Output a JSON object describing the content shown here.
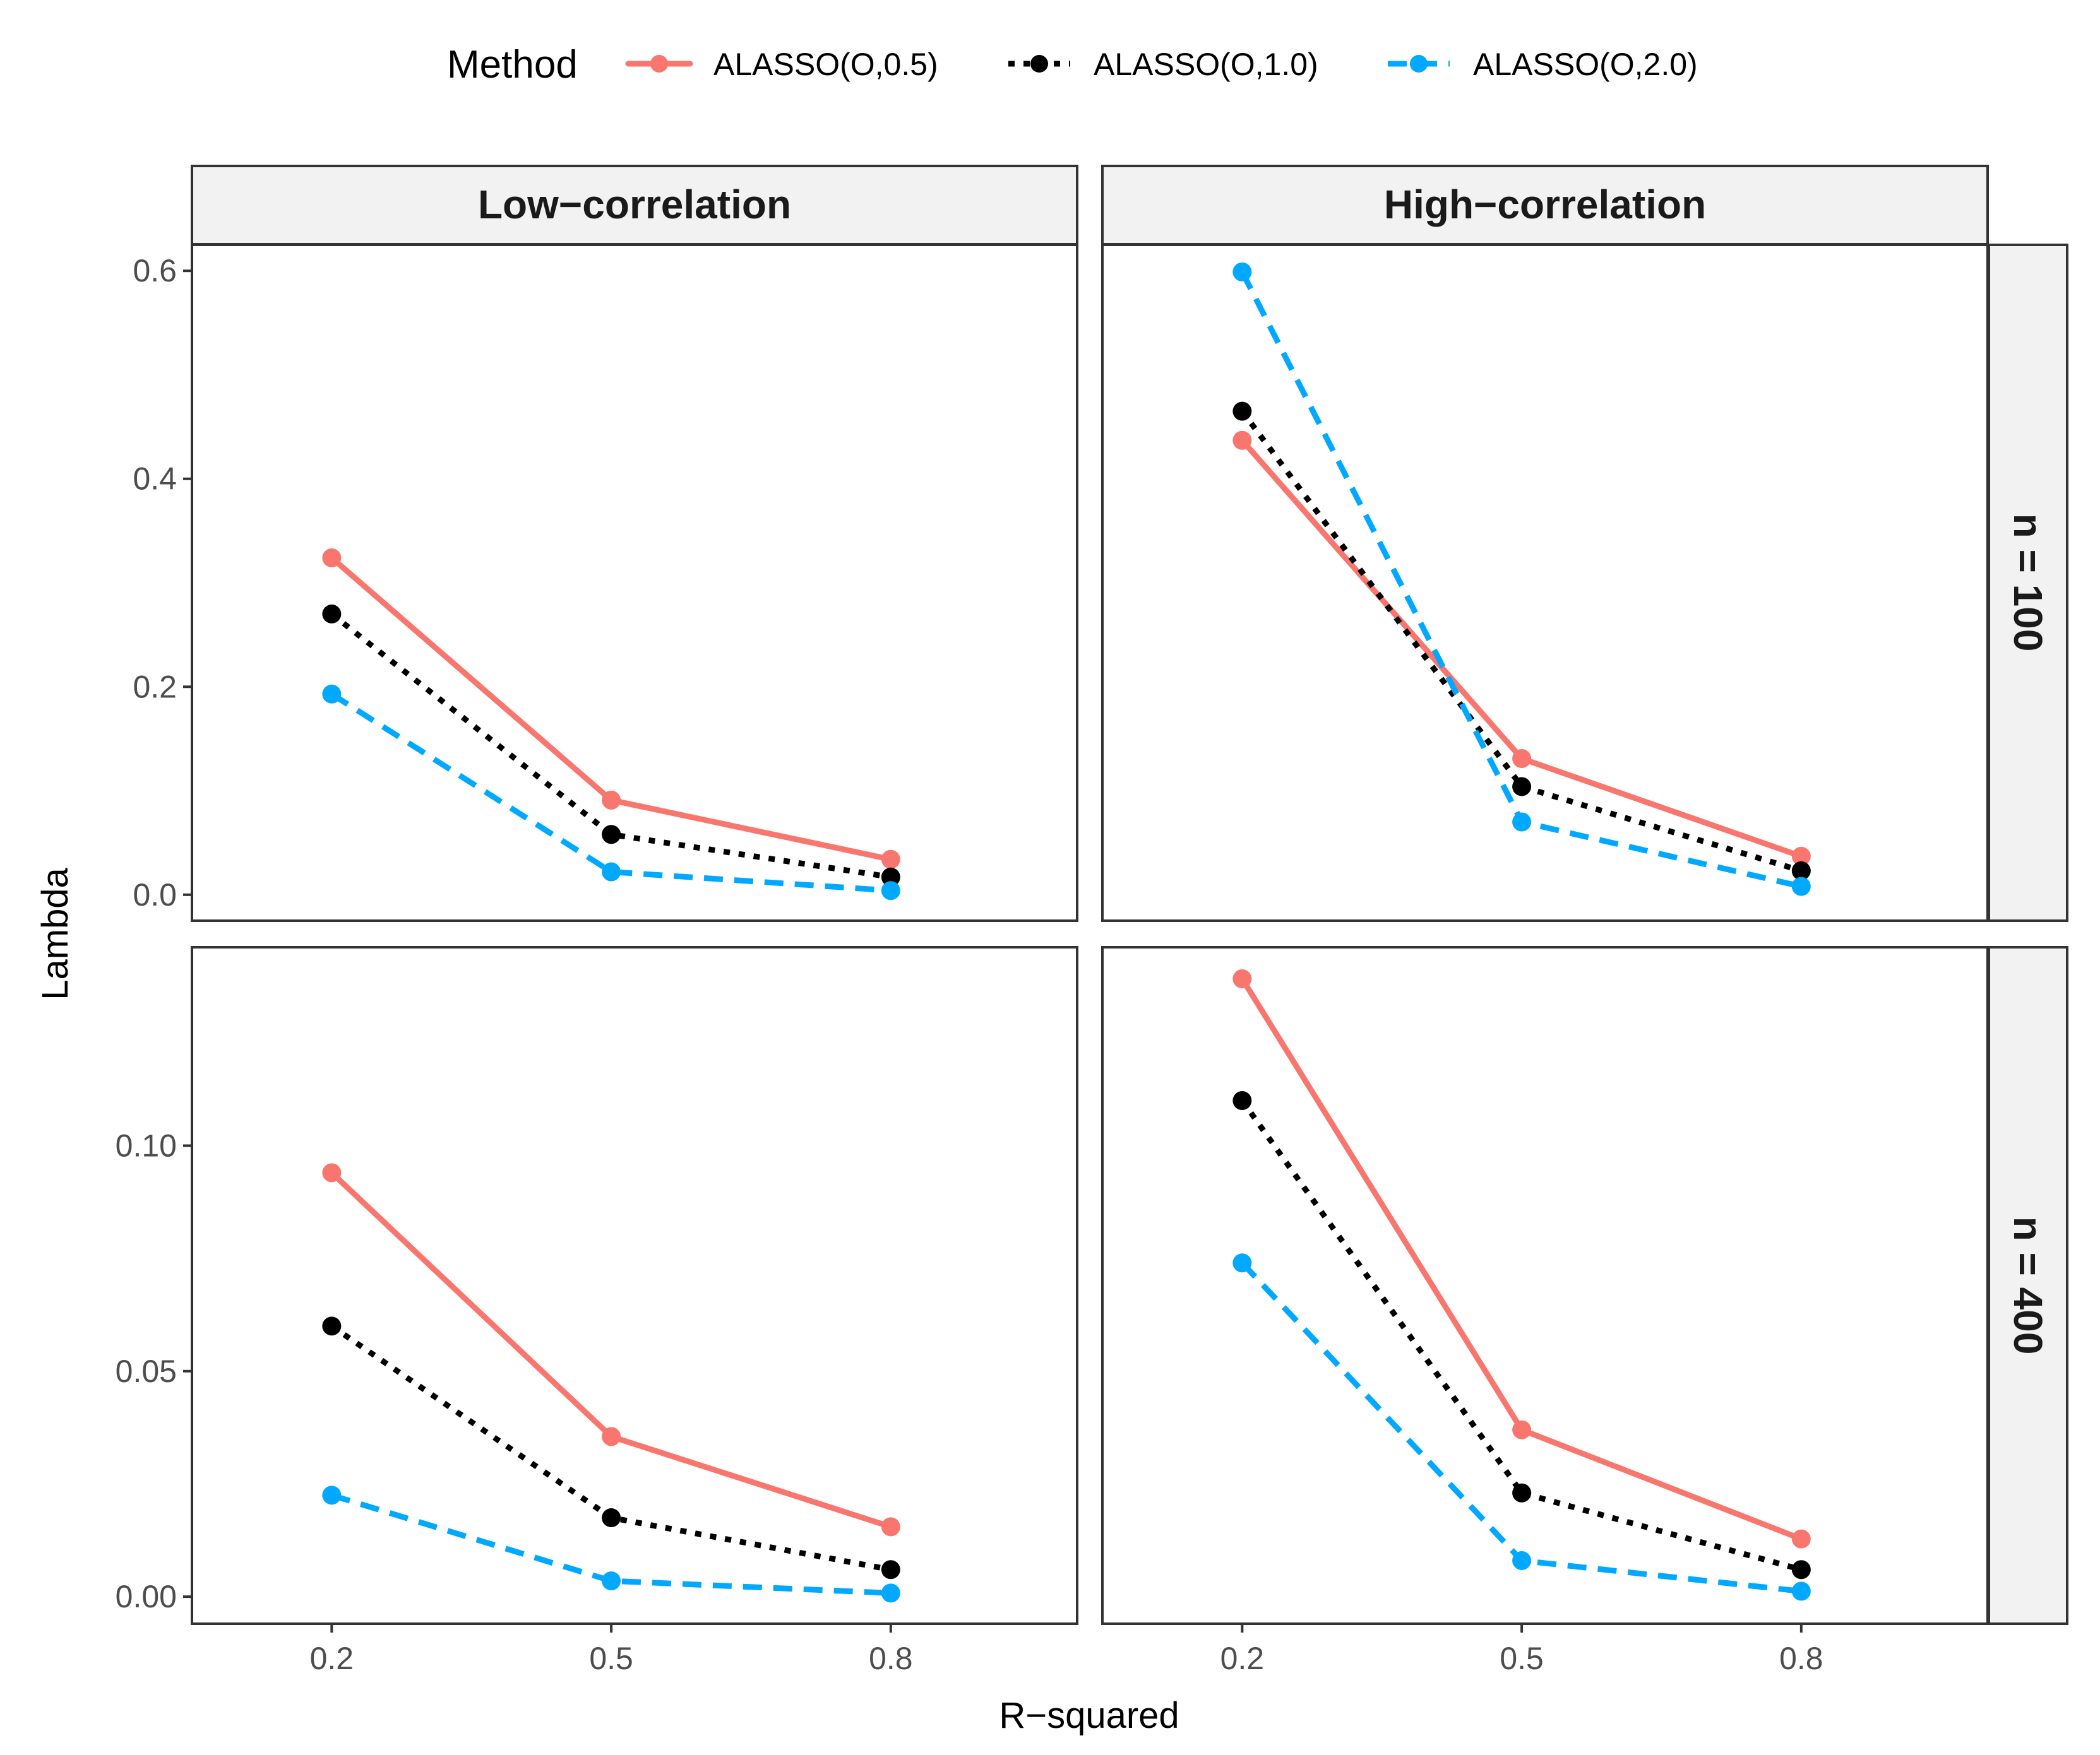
{
  "chart_data": {
    "type": "line",
    "xlabel": "R−squared",
    "ylabel": "Lambda",
    "legend": {
      "title": "Method",
      "position": "top",
      "entries": [
        {
          "name": "ALASSO(O,0.5)",
          "color": "#F8766D",
          "dash": "solid"
        },
        {
          "name": "ALASSO(O,1.0)",
          "color": "#000000",
          "dash": "dotted"
        },
        {
          "name": "ALASSO(O,2.0)",
          "color": "#00A9FF",
          "dash": "dashed"
        }
      ]
    },
    "column_strips": [
      "Low−correlation",
      "High−correlation"
    ],
    "row_strips": [
      "n = 100",
      "n = 400"
    ],
    "x": [
      "0.2",
      "0.5",
      "0.8"
    ],
    "x_values": [
      0.2,
      0.5,
      0.8
    ],
    "xlim": [
      0.05,
      1.0
    ],
    "rows": [
      {
        "ylim": [
          -0.025,
          0.625
        ],
        "yticks": [
          0.0,
          0.2,
          0.4,
          0.6
        ],
        "ytick_labels": [
          "0.0",
          "0.2",
          "0.4",
          "0.6"
        ]
      },
      {
        "ylim": [
          -0.006,
          0.144
        ],
        "yticks": [
          0.0,
          0.05,
          0.1
        ],
        "ytick_labels": [
          "0.00",
          "0.05",
          "0.10"
        ]
      }
    ],
    "panels": [
      {
        "row": 0,
        "col": 0,
        "series": [
          {
            "name": "ALASSO(O,0.5)",
            "values": [
              0.324,
              0.091,
              0.034
            ]
          },
          {
            "name": "ALASSO(O,1.0)",
            "values": [
              0.27,
              0.058,
              0.017
            ]
          },
          {
            "name": "ALASSO(O,2.0)",
            "values": [
              0.193,
              0.022,
              0.004
            ]
          }
        ]
      },
      {
        "row": 0,
        "col": 1,
        "series": [
          {
            "name": "ALASSO(O,0.5)",
            "values": [
              0.437,
              0.131,
              0.037
            ]
          },
          {
            "name": "ALASSO(O,1.0)",
            "values": [
              0.465,
              0.104,
              0.023
            ]
          },
          {
            "name": "ALASSO(O,2.0)",
            "values": [
              0.599,
              0.07,
              0.008
            ]
          }
        ]
      },
      {
        "row": 1,
        "col": 0,
        "series": [
          {
            "name": "ALASSO(O,0.5)",
            "values": [
              0.094,
              0.0355,
              0.0155
            ]
          },
          {
            "name": "ALASSO(O,1.0)",
            "values": [
              0.06,
              0.0175,
              0.006
            ]
          },
          {
            "name": "ALASSO(O,2.0)",
            "values": [
              0.0225,
              0.0035,
              0.0008
            ]
          }
        ]
      },
      {
        "row": 1,
        "col": 1,
        "series": [
          {
            "name": "ALASSO(O,0.5)",
            "values": [
              0.137,
              0.037,
              0.0128
            ]
          },
          {
            "name": "ALASSO(O,1.0)",
            "values": [
              0.11,
              0.023,
              0.006
            ]
          },
          {
            "name": "ALASSO(O,2.0)",
            "values": [
              0.074,
              0.008,
              0.0012
            ]
          }
        ]
      }
    ]
  }
}
